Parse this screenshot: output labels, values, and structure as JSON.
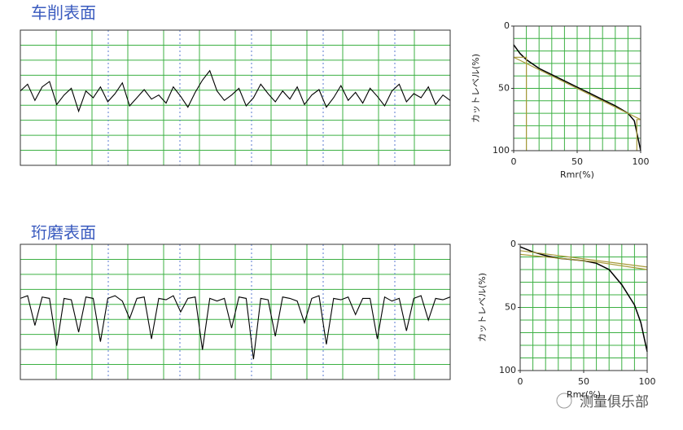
{
  "chart_data": [
    {
      "type": "line",
      "title": "车削表面",
      "color": "#000000",
      "ylim": [
        0,
        100
      ],
      "grid": true,
      "values": [
        55,
        60,
        48,
        58,
        62,
        45,
        52,
        57,
        40,
        55,
        50,
        58,
        47,
        53,
        61,
        44,
        50,
        56,
        49,
        52,
        46,
        58,
        51,
        43,
        54,
        63,
        70,
        55,
        48,
        52,
        57,
        44,
        50,
        60,
        53,
        47,
        55,
        49,
        58,
        45,
        52,
        56,
        43,
        50,
        59,
        48,
        54,
        46,
        57,
        51,
        44,
        55,
        60,
        47,
        53,
        50,
        58,
        45,
        52,
        48
      ]
    },
    {
      "type": "bearing",
      "xlabel": "Rmr(%)",
      "ylabel": "カットレベル(%)",
      "xlim": [
        0,
        100
      ],
      "ylim": [
        100,
        0
      ],
      "xticks": [
        0,
        50,
        100
      ],
      "yticks": [
        0,
        50,
        100
      ],
      "grid": true,
      "series": [
        {
          "color": "#000000",
          "x": [
            0,
            5,
            10,
            20,
            30,
            40,
            50,
            60,
            70,
            80,
            90,
            95,
            100
          ],
          "values": [
            15,
            22,
            27,
            34,
            39,
            44,
            49,
            54,
            59,
            64,
            70,
            76,
            100
          ]
        },
        {
          "color": "#a89a3a",
          "x": [
            0,
            100
          ],
          "values": [
            25,
            75
          ]
        },
        {
          "color": "#a89a3a",
          "x": [
            0,
            10,
            10
          ],
          "values": [
            25,
            25,
            100
          ]
        },
        {
          "color": "#a89a3a",
          "x": [
            97,
            97,
            100
          ],
          "values": [
            100,
            75,
            75
          ]
        }
      ]
    },
    {
      "type": "line",
      "title": "珩磨表面",
      "color": "#000000",
      "ylim": [
        0,
        100
      ],
      "grid": true,
      "values": [
        60,
        62,
        40,
        61,
        60,
        25,
        60,
        59,
        35,
        61,
        60,
        28,
        60,
        62,
        58,
        45,
        60,
        61,
        30,
        60,
        59,
        62,
        50,
        60,
        61,
        22,
        60,
        58,
        60,
        38,
        61,
        60,
        15,
        60,
        59,
        32,
        61,
        60,
        58,
        42,
        60,
        62,
        26,
        60,
        59,
        61,
        48,
        60,
        60,
        30,
        61,
        58,
        60,
        36,
        60,
        62,
        44,
        60,
        59,
        61
      ]
    },
    {
      "type": "bearing",
      "xlabel": "Rmr(%)",
      "ylabel": "カットレベル(%)",
      "xlim": [
        0,
        100
      ],
      "ylim": [
        100,
        0
      ],
      "xticks": [
        0,
        50,
        100
      ],
      "yticks": [
        0,
        50,
        100
      ],
      "grid": true,
      "series": [
        {
          "color": "#000000",
          "x": [
            0,
            10,
            20,
            30,
            40,
            50,
            60,
            70,
            80,
            90,
            95,
            100
          ],
          "values": [
            2,
            6,
            9,
            11,
            12,
            13,
            15,
            20,
            32,
            48,
            62,
            85
          ]
        },
        {
          "color": "#a89a3a",
          "x": [
            0,
            100
          ],
          "values": [
            5,
            18
          ]
        },
        {
          "color": "#a89a3a",
          "x": [
            0,
            60,
            100
          ],
          "values": [
            8,
            14,
            20
          ]
        }
      ]
    }
  ],
  "watermark": "测量俱乐部"
}
